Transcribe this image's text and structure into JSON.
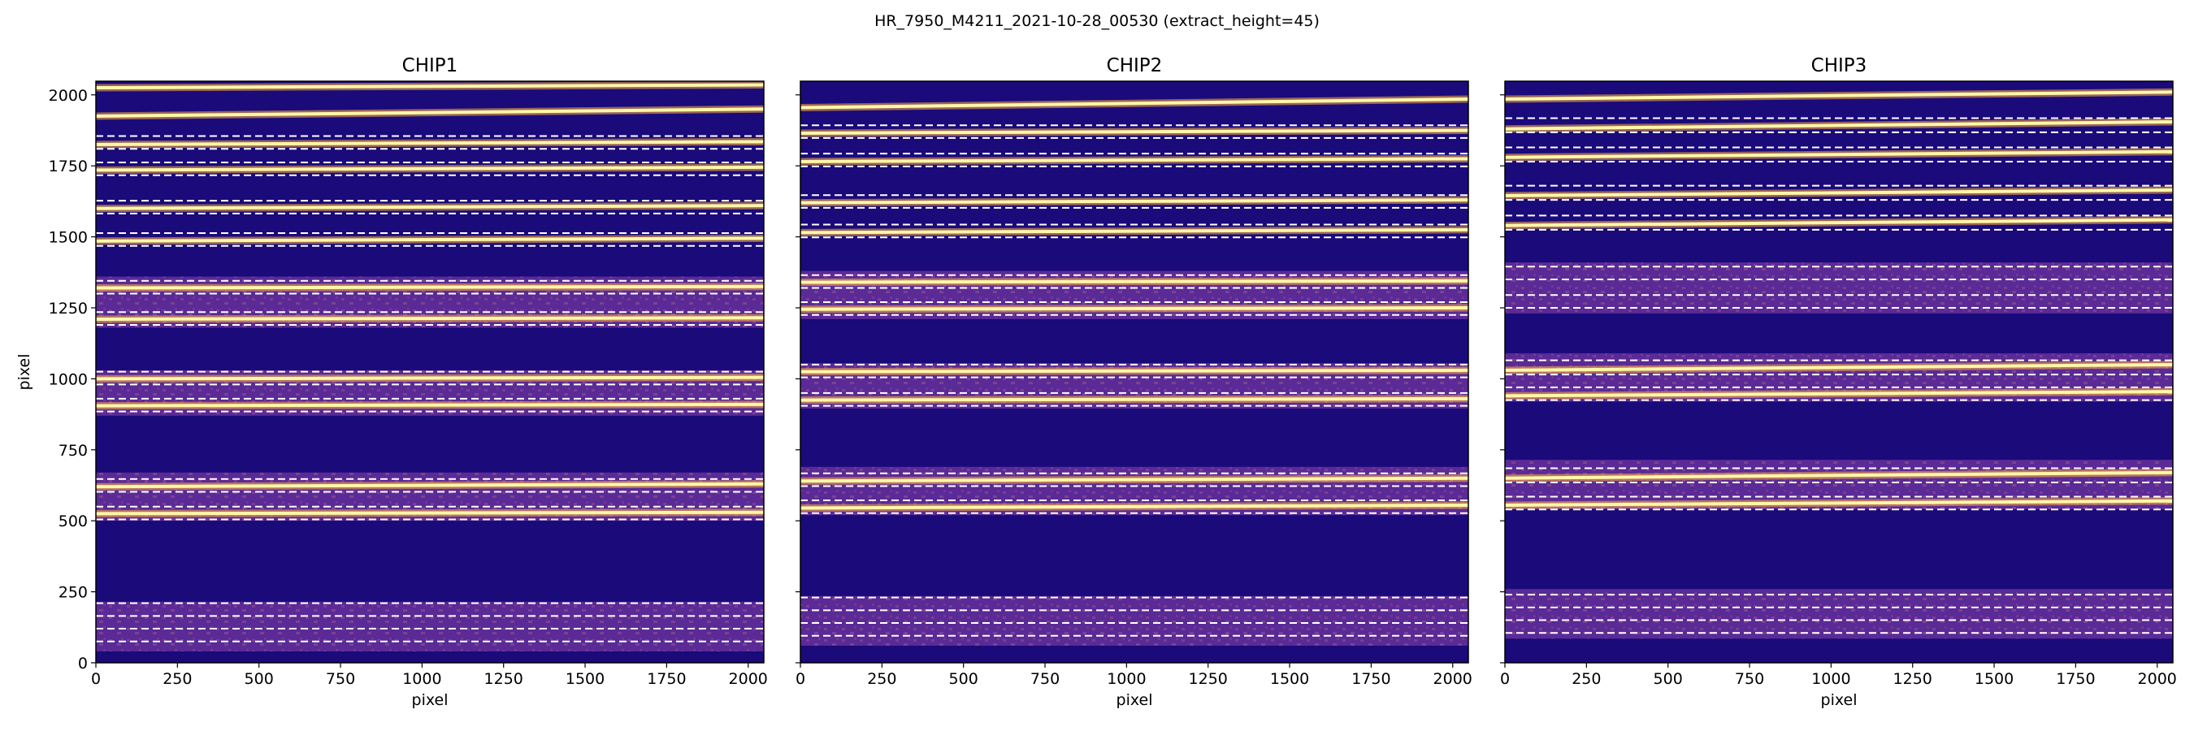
{
  "figure": {
    "suptitle": "HR_7950_M4211_2021-10-28_00530  (extract_height=45)"
  },
  "colors": {
    "background": "#1a0a7a",
    "band_fill": "#5a2a96",
    "band_texture": "#9a4a8a",
    "trace_core": "#fff7a8",
    "trace_glow": "#ffb23c",
    "boundary_line": "#ffffff"
  },
  "chart_data": [
    {
      "type": "heatmap",
      "title": "CHIP1",
      "xlabel": "pixel",
      "ylabel": "pixel",
      "xlim": [
        0,
        2048
      ],
      "ylim": [
        0,
        2048
      ],
      "xticks": [
        0,
        250,
        500,
        750,
        1000,
        1250,
        1500,
        1750,
        2000
      ],
      "yticks": [
        0,
        250,
        500,
        750,
        1000,
        1250,
        1500,
        1750,
        2000
      ],
      "colormap": "plasma",
      "bright_traces": [
        {
          "y_start": 2025,
          "y_end": 2035
        },
        {
          "y_start": 1925,
          "y_end": 1950
        },
        {
          "y_start": 1825,
          "y_end": 1835
        },
        {
          "y_start": 1735,
          "y_end": 1745
        },
        {
          "y_start": 1600,
          "y_end": 1610
        },
        {
          "y_start": 1485,
          "y_end": 1495
        },
        {
          "y_start": 1320,
          "y_end": 1325
        },
        {
          "y_start": 1210,
          "y_end": 1215
        },
        {
          "y_start": 1000,
          "y_end": 1005
        },
        {
          "y_start": 905,
          "y_end": 910
        },
        {
          "y_start": 620,
          "y_end": 630
        },
        {
          "y_start": 525,
          "y_end": 530
        }
      ],
      "diffuse_bands": [
        {
          "y_low": 1180,
          "y_high": 1360
        },
        {
          "y_low": 870,
          "y_high": 1030
        },
        {
          "y_low": 500,
          "y_high": 670
        },
        {
          "y_low": 40,
          "y_high": 215
        }
      ],
      "trace_boundaries": [
        {
          "y_lower": 1810,
          "y_upper": 1855
        },
        {
          "y_lower": 1717,
          "y_upper": 1762
        },
        {
          "y_lower": 1582,
          "y_upper": 1627
        },
        {
          "y_lower": 1468,
          "y_upper": 1513
        },
        {
          "y_lower": 1300,
          "y_upper": 1345
        },
        {
          "y_lower": 1190,
          "y_upper": 1235
        },
        {
          "y_lower": 980,
          "y_upper": 1025
        },
        {
          "y_lower": 885,
          "y_upper": 930
        },
        {
          "y_lower": 602,
          "y_upper": 647
        },
        {
          "y_lower": 505,
          "y_upper": 550
        },
        {
          "y_lower": 165,
          "y_upper": 210
        },
        {
          "y_lower": 75,
          "y_upper": 120
        }
      ]
    },
    {
      "type": "heatmap",
      "title": "CHIP2",
      "xlabel": "pixel",
      "ylabel": "",
      "xlim": [
        0,
        2048
      ],
      "ylim": [
        0,
        2048
      ],
      "xticks": [
        0,
        250,
        500,
        750,
        1000,
        1250,
        1500,
        1750,
        2000
      ],
      "yticks": [
        0,
        250,
        500,
        750,
        1000,
        1250,
        1500,
        1750,
        2000
      ],
      "colormap": "plasma",
      "bright_traces": [
        {
          "y_start": 1955,
          "y_end": 1985
        },
        {
          "y_start": 1865,
          "y_end": 1875
        },
        {
          "y_start": 1765,
          "y_end": 1775
        },
        {
          "y_start": 1620,
          "y_end": 1630
        },
        {
          "y_start": 1515,
          "y_end": 1525
        },
        {
          "y_start": 1340,
          "y_end": 1345
        },
        {
          "y_start": 1245,
          "y_end": 1250
        },
        {
          "y_start": 1025,
          "y_end": 1030
        },
        {
          "y_start": 925,
          "y_end": 930
        },
        {
          "y_start": 640,
          "y_end": 650
        },
        {
          "y_start": 545,
          "y_end": 555
        }
      ],
      "diffuse_bands": [
        {
          "y_low": 1210,
          "y_high": 1380
        },
        {
          "y_low": 895,
          "y_high": 1055
        },
        {
          "y_low": 520,
          "y_high": 690
        },
        {
          "y_low": 60,
          "y_high": 235
        }
      ],
      "trace_boundaries": [
        {
          "y_lower": 1848,
          "y_upper": 1893
        },
        {
          "y_lower": 1748,
          "y_upper": 1793
        },
        {
          "y_lower": 1602,
          "y_upper": 1647
        },
        {
          "y_lower": 1498,
          "y_upper": 1543
        },
        {
          "y_lower": 1320,
          "y_upper": 1365
        },
        {
          "y_lower": 1225,
          "y_upper": 1270
        },
        {
          "y_lower": 1005,
          "y_upper": 1050
        },
        {
          "y_lower": 905,
          "y_upper": 950
        },
        {
          "y_lower": 622,
          "y_upper": 667
        },
        {
          "y_lower": 527,
          "y_upper": 572
        },
        {
          "y_lower": 185,
          "y_upper": 230
        },
        {
          "y_lower": 95,
          "y_upper": 140
        }
      ]
    },
    {
      "type": "heatmap",
      "title": "CHIP3",
      "xlabel": "pixel",
      "ylabel": "",
      "xlim": [
        0,
        2048
      ],
      "ylim": [
        0,
        2048
      ],
      "xticks": [
        0,
        250,
        500,
        750,
        1000,
        1250,
        1500,
        1750,
        2000
      ],
      "yticks": [
        0,
        250,
        500,
        750,
        1000,
        1250,
        1500,
        1750,
        2000
      ],
      "colormap": "plasma",
      "bright_traces": [
        {
          "y_start": 1985,
          "y_end": 2010
        },
        {
          "y_start": 1880,
          "y_end": 1905
        },
        {
          "y_start": 1780,
          "y_end": 1800
        },
        {
          "y_start": 1645,
          "y_end": 1665
        },
        {
          "y_start": 1540,
          "y_end": 1560
        },
        {
          "y_start": 1030,
          "y_end": 1050
        },
        {
          "y_start": 940,
          "y_end": 955
        },
        {
          "y_start": 650,
          "y_end": 670
        },
        {
          "y_start": 555,
          "y_end": 570
        }
      ],
      "diffuse_bands": [
        {
          "y_low": 1230,
          "y_high": 1410
        },
        {
          "y_low": 920,
          "y_high": 1090
        },
        {
          "y_low": 540,
          "y_high": 715
        },
        {
          "y_low": 85,
          "y_high": 260
        }
      ],
      "trace_boundaries": [
        {
          "y_lower": 1868,
          "y_upper": 1918
        },
        {
          "y_lower": 1765,
          "y_upper": 1815
        },
        {
          "y_lower": 1630,
          "y_upper": 1680
        },
        {
          "y_lower": 1525,
          "y_upper": 1575
        },
        {
          "y_lower": 1350,
          "y_upper": 1395
        },
        {
          "y_lower": 1250,
          "y_upper": 1295
        },
        {
          "y_lower": 1015,
          "y_upper": 1065
        },
        {
          "y_lower": 925,
          "y_upper": 970
        },
        {
          "y_lower": 635,
          "y_upper": 685
        },
        {
          "y_lower": 540,
          "y_upper": 585
        },
        {
          "y_lower": 195,
          "y_upper": 240
        },
        {
          "y_lower": 105,
          "y_upper": 150
        }
      ]
    }
  ]
}
